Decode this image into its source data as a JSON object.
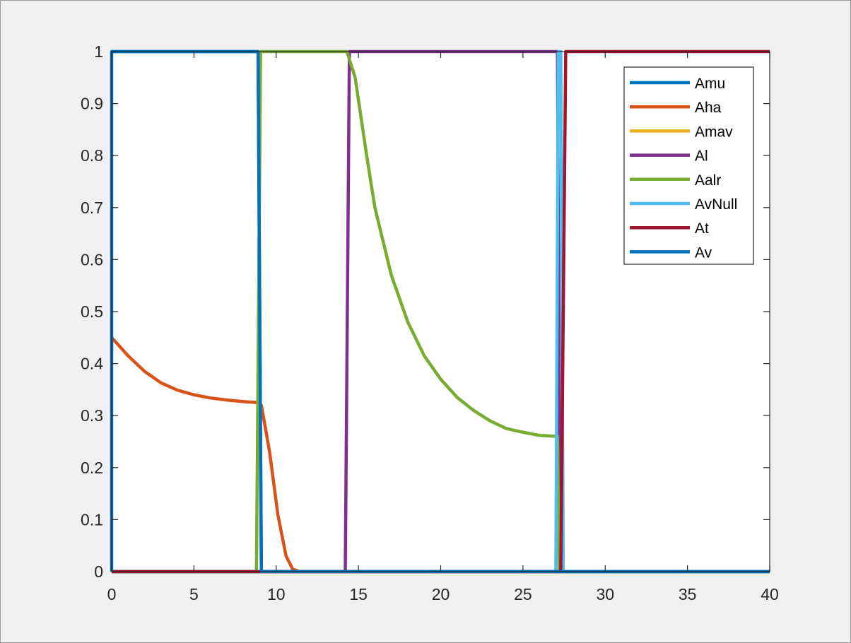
{
  "chart_data": {
    "type": "line",
    "title": "",
    "xlabel": "",
    "ylabel": "",
    "xlim": [
      0,
      40
    ],
    "ylim": [
      0,
      1
    ],
    "xticks": [
      0,
      5,
      10,
      15,
      20,
      25,
      30,
      35,
      40
    ],
    "xtick_labels": [
      "0",
      "5",
      "10",
      "15",
      "20",
      "25",
      "30",
      "35",
      "40"
    ],
    "yticks": [
      0,
      0.1,
      0.2,
      0.3,
      0.4,
      0.5,
      0.6,
      0.7,
      0.8,
      0.9,
      1
    ],
    "ytick_labels": [
      "0",
      "0.1",
      "0.2",
      "0.3",
      "0.4",
      "0.5",
      "0.6",
      "0.7",
      "0.8",
      "0.9",
      "1"
    ],
    "grid": false,
    "legend_position": "top-right",
    "series": [
      {
        "name": "Amu",
        "color": "#0072BD",
        "x": [
          0,
          8.9,
          9.1,
          40
        ],
        "y": [
          1,
          1,
          0,
          0
        ]
      },
      {
        "name": "Aha",
        "color": "#D95319",
        "x": [
          0,
          1,
          2,
          3,
          4,
          5,
          6,
          7,
          8,
          8.9,
          9.1,
          9.6,
          10.1,
          10.6,
          11.0,
          11.4,
          40
        ],
        "y": [
          0.45,
          0.415,
          0.385,
          0.363,
          0.349,
          0.34,
          0.334,
          0.33,
          0.327,
          0.325,
          0.32,
          0.23,
          0.11,
          0.03,
          0.005,
          0,
          0
        ]
      },
      {
        "name": "Amav",
        "color": "#EDB120",
        "x": [
          0,
          40
        ],
        "y": [
          0,
          0
        ]
      },
      {
        "name": "Al",
        "color": "#7E2F8E",
        "x": [
          0,
          14.2,
          14.45,
          27.1,
          27.25,
          40
        ],
        "y": [
          0,
          0,
          1,
          1,
          0,
          0
        ]
      },
      {
        "name": "Aalr",
        "color": "#77AC30",
        "x": [
          0,
          8.8,
          9.05,
          14.3,
          14.8,
          15.5,
          16,
          17,
          18,
          19,
          20,
          21,
          22,
          23,
          24,
          25,
          26,
          27.1,
          27.2,
          40
        ],
        "y": [
          0,
          0,
          1,
          1,
          0.95,
          0.8,
          0.7,
          0.57,
          0.48,
          0.415,
          0.37,
          0.335,
          0.31,
          0.29,
          0.275,
          0.268,
          0.262,
          0.26,
          0,
          0
        ]
      },
      {
        "name": "AvNull",
        "color": "#4DBEEE",
        "x": [
          0,
          27.0,
          27.15,
          27.3,
          27.45,
          40
        ],
        "y": [
          0,
          0,
          1,
          1,
          0,
          0
        ]
      },
      {
        "name": "At",
        "color": "#A2142F",
        "x": [
          0,
          27.3,
          27.6,
          40
        ],
        "y": [
          0,
          0,
          1,
          1
        ]
      },
      {
        "name": "Av",
        "color": "#0072BD",
        "x": [
          0,
          0,
          8.9,
          9.1,
          40
        ],
        "y": [
          0,
          1,
          1,
          0,
          0
        ]
      }
    ]
  }
}
